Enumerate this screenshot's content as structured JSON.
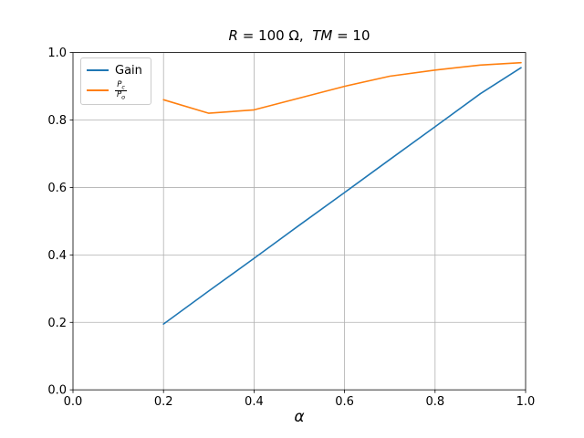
{
  "title_parts": [
    {
      "t": "R",
      "i": true
    },
    {
      "t": " = 100 Ω,  ",
      "i": false
    },
    {
      "t": "TM",
      "i": true
    },
    {
      "t": " = 10",
      "i": false
    }
  ],
  "legend": {
    "items": [
      {
        "label": "Gain",
        "color": "#1f77b4"
      },
      {
        "label": "Pc/Po",
        "color": "#ff7f0e",
        "frac": {
          "num": "P",
          "num_sub": "c",
          "den": "P",
          "den_sub": "o"
        }
      }
    ]
  },
  "colors": {
    "grid": "#b0b0b0",
    "spine": "#000000",
    "background": "#ffffff",
    "series_blue": "#1f77b4",
    "series_orange": "#ff7f0e",
    "legend_border": "#cccccc"
  },
  "chart_data": {
    "type": "line",
    "title": "R = 100 Ω,  TM = 10",
    "xlabel": "α",
    "ylabel": "",
    "x": [
      0.2,
      0.3,
      0.4,
      0.5,
      0.6,
      0.7,
      0.8,
      0.9,
      0.99
    ],
    "series": [
      {
        "name": "Gain",
        "color": "#1f77b4",
        "values": [
          0.195,
          0.293,
          0.39,
          0.488,
          0.585,
          0.683,
          0.78,
          0.878,
          0.955
        ]
      },
      {
        "name": "Pc/Po",
        "color": "#ff7f0e",
        "values": [
          0.86,
          0.82,
          0.83,
          0.865,
          0.9,
          0.93,
          0.948,
          0.963,
          0.97
        ]
      }
    ],
    "xlim": [
      0.0,
      1.0
    ],
    "ylim": [
      0.0,
      1.0
    ],
    "xticks": [
      0.0,
      0.2,
      0.4,
      0.6,
      0.8,
      1.0
    ],
    "yticks": [
      0.0,
      0.2,
      0.4,
      0.6,
      0.8,
      1.0
    ],
    "xtick_labels": [
      "0.0",
      "0.2",
      "0.4",
      "0.6",
      "0.8",
      "1.0"
    ],
    "ytick_labels": [
      "0.0",
      "0.2",
      "0.4",
      "0.6",
      "0.8",
      "1.0"
    ],
    "grid": true,
    "legend_position": "upper left"
  }
}
